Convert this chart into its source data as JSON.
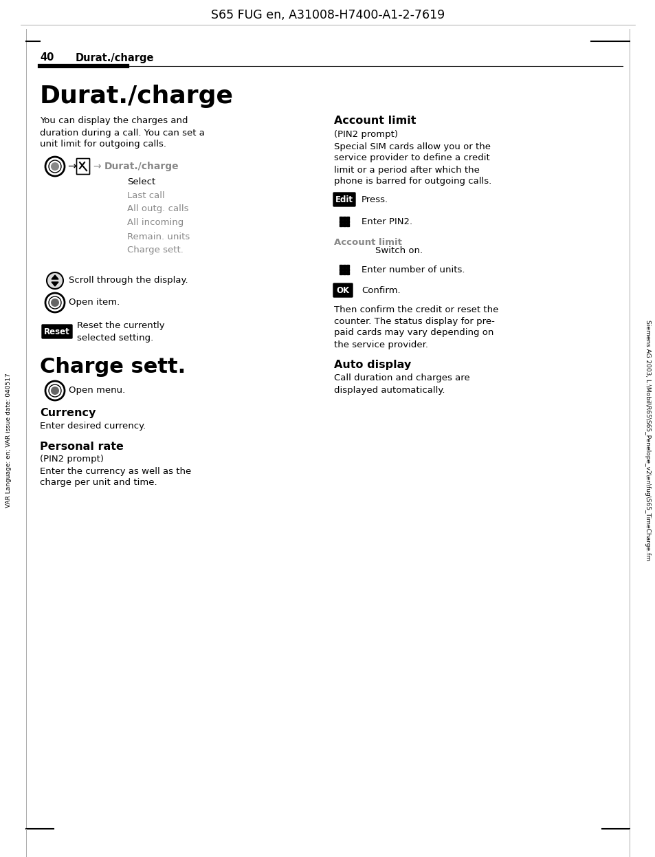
{
  "header_title": "S65 FUG en, A31008-H7400-A1-2-7619",
  "page_number": "40",
  "page_header_text": "Durat./charge",
  "main_title": "Durat./charge",
  "intro_text": "You can display the charges and\nduration during a call. You can set a\nunit limit for outgoing calls.",
  "menu_items": [
    "Select",
    "Last call",
    "All outg. calls",
    "All incoming",
    "Remain. units",
    "Charge sett."
  ],
  "scroll_text": "Scroll through the display.",
  "open_item_text": "Open item.",
  "reset_text_1": "Reset the currently",
  "reset_text_2": "selected setting.",
  "charge_sett_title": "Charge sett.",
  "open_menu_text": "Open menu.",
  "currency_title": "Currency",
  "currency_text": "Enter desired currency.",
  "personal_rate_title": "Personal rate",
  "pin2_prompt_left": "(PIN2 prompt)",
  "personal_rate_text_1": "Enter the currency as well as the",
  "personal_rate_text_2": "charge per unit and time.",
  "account_limit_title": "Account limit",
  "account_limit_pin2": "(PIN2 prompt)",
  "account_limit_text_1": "Special SIM cards allow you or the",
  "account_limit_text_2": "service provider to define a credit",
  "account_limit_text_3": "limit or a period after which the",
  "account_limit_text_4": "phone is barred for outgoing calls.",
  "edit_text": "Press.",
  "enter_pin2_text": "Enter PIN2.",
  "account_limit_label": "Account limit",
  "switch_on_text": "Switch on.",
  "enter_units_text": "Enter number of units.",
  "confirm_text": "Confirm.",
  "then_text_1": "Then confirm the credit or reset the",
  "then_text_2": "counter. The status display for pre-",
  "then_text_3": "paid cards may vary depending on",
  "then_text_4": "the service provider.",
  "auto_display_title": "Auto display",
  "auto_display_text_1": "Call duration and charges are",
  "auto_display_text_2": "displayed automatically.",
  "side_text_left": "VAR Language: en; VAR issue date: 040517",
  "side_text_right": "Siemens AG 2003, L:\\Mobil\\R65\\S65_Penelope_v2\\en\\fug\\S65_TimeCharge.fm",
  "menu_arrow_label": "Durat./charge",
  "bg_color": "#ffffff",
  "text_color": "#000000",
  "gray_color": "#888888"
}
